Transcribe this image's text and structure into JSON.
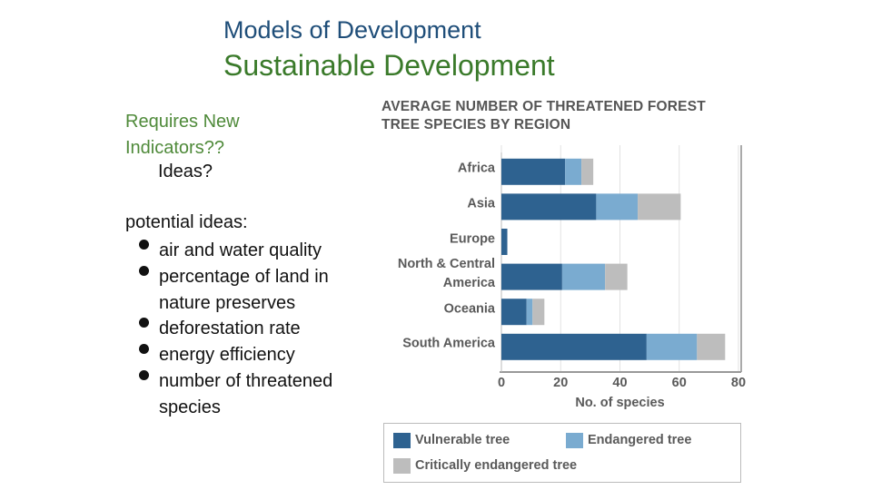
{
  "slide": {
    "heading": "Models of Development",
    "title": "Sustainable Development",
    "prompt": "Requires New Indicators??",
    "question": "Ideas?",
    "list_title": "potential ideas:",
    "bullets": [
      "air and water quality",
      "percentage of land in nature preserves",
      "deforestation rate",
      "energy efficiency",
      "number of threatened species"
    ]
  },
  "chart_data": {
    "type": "stacked-barh",
    "title": "AVERAGE NUMBER OF THREATENED FOREST TREE SPECIES BY REGION",
    "categories": [
      "Africa",
      "Asia",
      "Europe",
      "North & Central America",
      "Oceania",
      "South America"
    ],
    "series": [
      {
        "name": "Vulnerable tree",
        "color": "#2e6290",
        "values": [
          21.5,
          32,
          2,
          20.5,
          8.5,
          49
        ]
      },
      {
        "name": "Endangered tree",
        "color": "#7aabd0",
        "values": [
          5.5,
          14,
          0,
          14.5,
          2,
          17
        ]
      },
      {
        "name": "Critically endangered tree",
        "color": "#bdbdbd",
        "values": [
          4,
          14.5,
          0,
          7.5,
          4,
          9.5
        ]
      }
    ],
    "xlabel": "No. of species",
    "xlim": [
      0,
      80
    ],
    "xticks": [
      0,
      20,
      40,
      60,
      80
    ],
    "grid": true
  }
}
